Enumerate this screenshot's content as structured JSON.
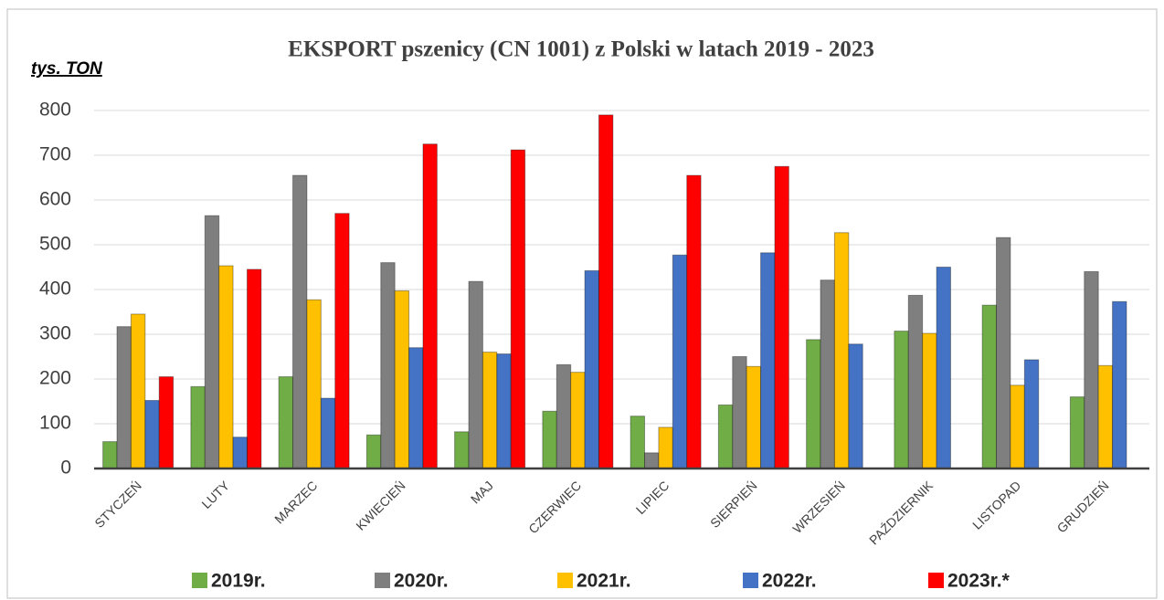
{
  "chart_data": {
    "type": "bar",
    "title": "EKSPORT pszenicy (CN 1001) z Polski w latach 2019 - 2023",
    "y_label": "tys. TON",
    "categories": [
      "STYCZEŃ",
      "LUTY",
      "MARZEC",
      "KWIECIEŃ",
      "MAJ",
      "CZERWIEC",
      "LIPIEC",
      "SIERPIEŃ",
      "WRZESIEŃ",
      "PAŹDZIERNIK",
      "LISTOPAD",
      "GRUDZIEŃ"
    ],
    "series": [
      {
        "name": "2019r.",
        "color": "#70ad47",
        "values": [
          60,
          183,
          205,
          75,
          82,
          128,
          117,
          142,
          288,
          307,
          365,
          160
        ]
      },
      {
        "name": "2020r.",
        "color": "#7f7f7f",
        "values": [
          317,
          565,
          655,
          460,
          418,
          232,
          35,
          250,
          421,
          387,
          516,
          440
        ]
      },
      {
        "name": "2021r.",
        "color": "#ffc000",
        "values": [
          345,
          453,
          377,
          397,
          260,
          215,
          92,
          228,
          527,
          302,
          186,
          230
        ]
      },
      {
        "name": "2022r.",
        "color": "#4472c4",
        "values": [
          152,
          70,
          157,
          270,
          256,
          442,
          477,
          482,
          278,
          450,
          243,
          373
        ]
      },
      {
        "name": "2023r.*",
        "color": "#ff0000",
        "values": [
          205,
          445,
          570,
          725,
          712,
          790,
          655,
          675,
          null,
          null,
          null,
          null
        ]
      }
    ],
    "ylim": [
      0,
      800
    ],
    "yticks": [
      0,
      100,
      200,
      300,
      400,
      500,
      600,
      700,
      800
    ],
    "grid": true,
    "legend": "bottom"
  }
}
